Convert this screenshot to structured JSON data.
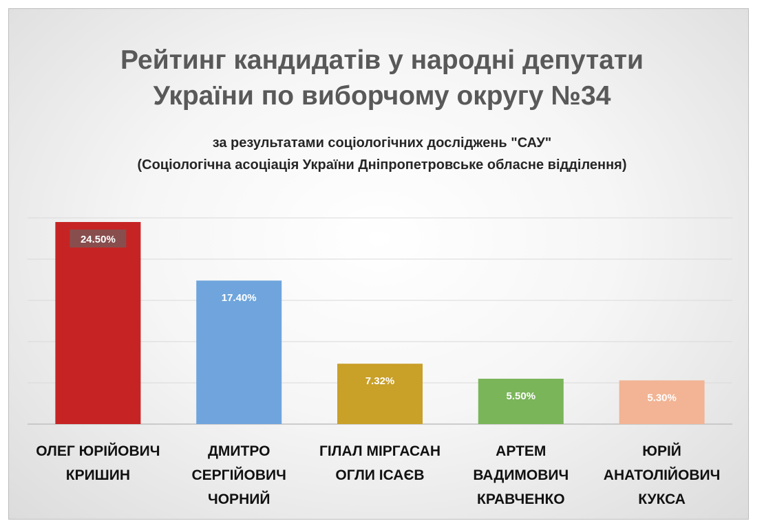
{
  "chart_data": {
    "type": "bar",
    "title_lines": [
      "Рейтинг кандидатів у народні депутати",
      "України по виборчому округу №34"
    ],
    "subtitle_lines": [
      "за результатами соціологічних досліджень \"САУ\"",
      "(Соціологічна асоціація України Дніпропетровське обласне відділення)"
    ],
    "categories": [
      [
        "ОЛЕГ ЮРІЙОВИЧ",
        "КРИШИН"
      ],
      [
        "ДМИТРО",
        "СЕРГІЙОВИЧ",
        "ЧОРНИЙ"
      ],
      [
        "ГІЛАЛ МІРГАСАН",
        "ОГЛИ ІСАЄВ"
      ],
      [
        "АРТЕМ",
        "ВАДИМОВИЧ",
        "КРАВЧЕНКО"
      ],
      [
        "ЮРІЙ",
        "АНАТОЛІЙОВИЧ",
        "КУКСА"
      ]
    ],
    "values": [
      24.5,
      17.4,
      7.32,
      5.5,
      5.3
    ],
    "data_labels": [
      "24.50%",
      "17.40%",
      "7.32%",
      "5.50%",
      "5.30%"
    ],
    "colors": [
      "#c62424",
      "#6fa5dc",
      "#c9a028",
      "#7ab55a",
      "#f2b494"
    ],
    "label_colors": [
      "#ffffff",
      "#ffffff",
      "#ffffff",
      "#ffffff",
      "#ffffff"
    ],
    "highlight_label_bg": "#7d5656",
    "ylim": [
      0,
      25
    ],
    "grid": true,
    "legend": "none"
  }
}
